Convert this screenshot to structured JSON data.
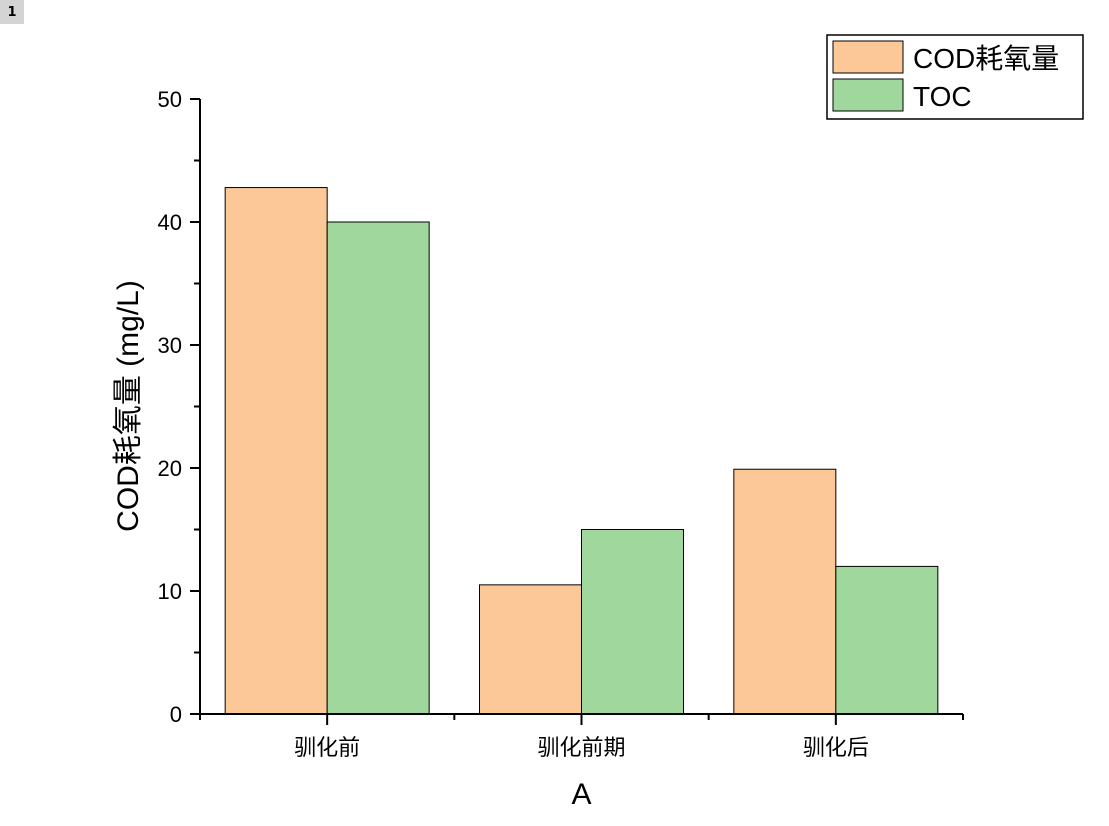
{
  "page_badge": "1",
  "chart_data": {
    "type": "bar",
    "categories": [
      "驯化前",
      "驯化前期",
      "驯化后"
    ],
    "series": [
      {
        "name": "COD耗氧量",
        "values": [
          42.8,
          10.5,
          19.9
        ],
        "color": "#fcc898"
      },
      {
        "name": "TOC",
        "values": [
          40.0,
          15.0,
          12.0
        ],
        "color": "#9fd79c"
      }
    ],
    "xlabel": "A",
    "ylabel": "COD耗氧量 (mg/L)",
    "ylim": [
      0,
      50
    ],
    "yticks": [
      0,
      10,
      20,
      30,
      40,
      50
    ],
    "grid": false,
    "legend_position": "top-right"
  }
}
